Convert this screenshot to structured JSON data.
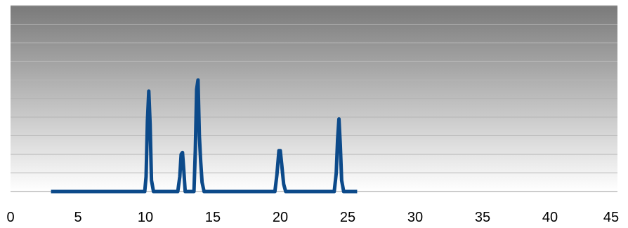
{
  "chart_data": {
    "type": "line",
    "title": "",
    "xlabel": "",
    "ylabel": "",
    "xlim": [
      0,
      45
    ],
    "ylim": [
      0,
      10
    ],
    "x_ticks": [
      0,
      5,
      10,
      15,
      20,
      25,
      30,
      35,
      40,
      45
    ],
    "x_tick_labels": [
      "0",
      "5",
      "10",
      "15",
      "20",
      "25",
      "30",
      "35",
      "40",
      "45"
    ],
    "grid": true,
    "legend": "none",
    "colors": {
      "series": "#0c4a8a",
      "plot_background_top": "#7a7a7a",
      "plot_background_bottom": "#ffffff",
      "gridline": "#b5b5b5"
    },
    "series": [
      {
        "x": [
          3.0,
          9.95,
          10.05,
          10.15,
          10.25,
          10.35,
          10.45,
          10.6,
          12.4,
          12.55,
          12.65,
          12.75,
          12.85,
          12.95,
          13.6,
          13.7,
          13.8,
          13.9,
          14.0,
          14.1,
          14.2,
          14.35,
          19.6,
          19.75,
          19.9,
          20.0,
          20.1,
          20.25,
          20.4,
          24.0,
          24.15,
          24.25,
          24.35,
          24.45,
          24.55,
          24.7,
          25.7
        ],
        "y": [
          0,
          0,
          0.8,
          3.8,
          5.4,
          3.6,
          0.6,
          0,
          0,
          0.8,
          2.0,
          2.1,
          1.1,
          0,
          0,
          2.2,
          5.5,
          6.0,
          3.0,
          1.6,
          0.5,
          0,
          0,
          0.9,
          2.2,
          2.2,
          1.5,
          0.4,
          0,
          0,
          1.0,
          2.8,
          3.9,
          2.5,
          0.6,
          0,
          0
        ]
      }
    ]
  }
}
